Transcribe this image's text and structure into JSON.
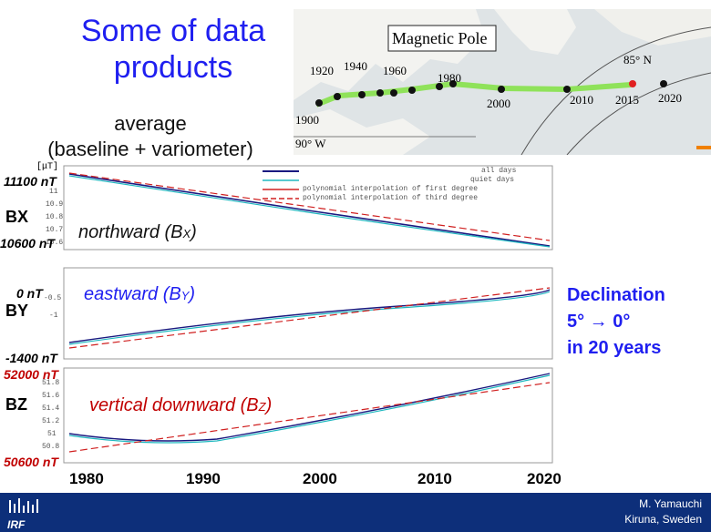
{
  "title_line1": "Some of data",
  "title_line2": "products",
  "subtitle_line1": "average",
  "subtitle_line2": "(baseline + variometer)",
  "map": {
    "label": "Magnetic Pole",
    "years_top": [
      "1920",
      "1940",
      "1960",
      "1980"
    ],
    "year_1900": "1900",
    "year_2000": "2000",
    "year_2010": "2010",
    "year_2015": "2015",
    "year_2020": "2020",
    "lat_label": "85° N",
    "lon_label": "90° W"
  },
  "panels": {
    "unit": "[μT]",
    "bx": {
      "name": "BX",
      "top": "11100 nT",
      "bottom": "10600 nT",
      "component": "northward (B",
      "sub": "X",
      "close": ")",
      "ticks": [
        "11",
        "10.9",
        "10.8",
        "10.7",
        "10.6"
      ]
    },
    "by": {
      "name": "BY",
      "top": "0 nT",
      "bottom": "-1400 nT",
      "component": "eastward (B",
      "sub": "Y",
      "close": ")",
      "ticks": [
        "-0.5",
        "-1"
      ]
    },
    "bz": {
      "name": "BZ",
      "top": "52000 nT",
      "bottom": "50600 nT",
      "component": "vertical downward (B",
      "sub": "Z",
      "close": ")",
      "ticks": [
        "51.8",
        "51.6",
        "51.4",
        "51.2",
        "51",
        "50.8"
      ]
    }
  },
  "legend": [
    "all days",
    "quiet days",
    "polynomial interpolation of first degree",
    "polynomial interpolation of third degree"
  ],
  "x_ticks": [
    "1980",
    "1990",
    "2000",
    "2010",
    "2020"
  ],
  "declination": {
    "line1": "Declination",
    "line2": "5° → 0°",
    "line3": "in 20 years"
  },
  "logo": "IRF",
  "author": {
    "line1": "M. Yamauchi",
    "line2": "Kiruna, Sweden"
  },
  "colors": {
    "title": "#1f1ff0",
    "red": "#c00000",
    "footer": "#0d2f7a",
    "pole_track": "#8fe25a"
  }
}
